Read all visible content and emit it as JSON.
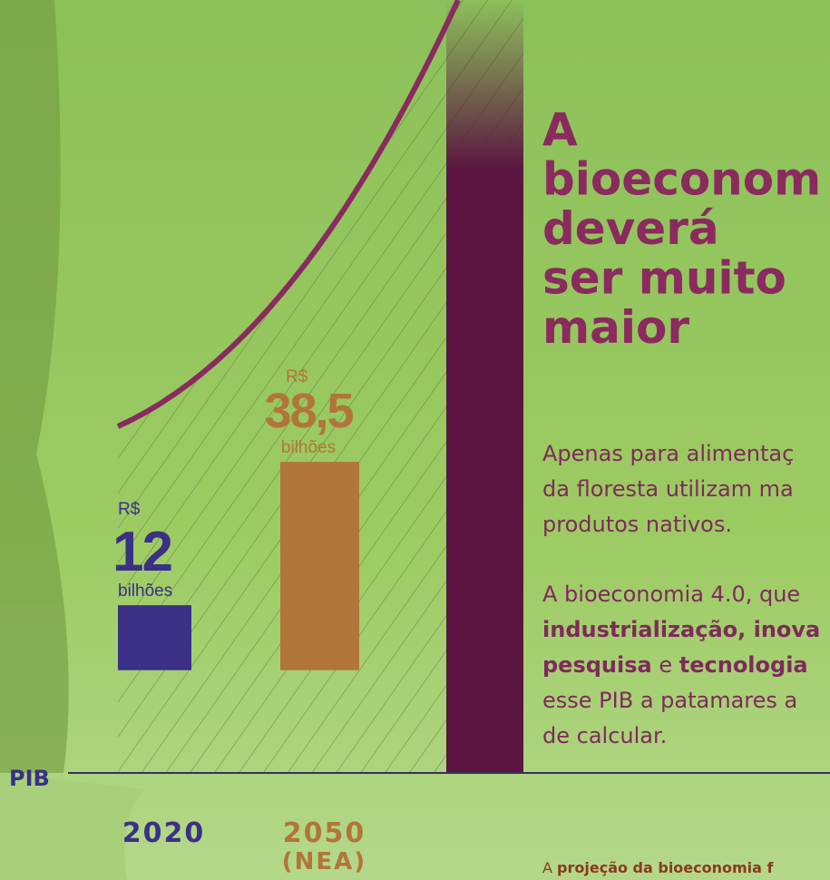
{
  "chart_data": {
    "type": "bar",
    "categories": [
      "2020",
      "2050"
    ],
    "category_sublabels": [
      null,
      "(NEA)"
    ],
    "values": [
      12,
      38.5
    ],
    "value_labels": [
      "12",
      "38,5"
    ],
    "colors": [
      "#3b2f86",
      "#b27539"
    ],
    "currency": "R$",
    "unit": "bilhões",
    "axis_label": "PIB",
    "ylim": [
      -19,
      62
    ]
  },
  "article": {
    "heading": [
      "A",
      "bioeconom",
      "deverá",
      "ser muito",
      "maior"
    ],
    "paragraphs": [
      [
        [
          {
            "text": "Apenas para alimentaç",
            "bold": false
          }
        ],
        [
          {
            "text": "da floresta utilizam ma",
            "bold": false
          }
        ],
        [
          {
            "text": "produtos nativos.",
            "bold": false
          }
        ]
      ],
      [
        [
          {
            "text": "A bioeconomia 4.0, que",
            "bold": false
          }
        ],
        [
          {
            "text": "industrialização, inova",
            "bold": true
          }
        ],
        [
          {
            "text": "pesquisa",
            "bold": true
          },
          {
            "text": " e ",
            "bold": false
          },
          {
            "text": "tecnologia",
            "bold": true
          }
        ],
        [
          {
            "text": "esse PIB a patamares a",
            "bold": false
          }
        ],
        [
          {
            "text": "de calcular.",
            "bold": false
          }
        ]
      ]
    ],
    "footnote": [
      {
        "text": "A ",
        "bold": false
      },
      {
        "text": "projeção da bioeconomia f",
        "bold": true
      }
    ]
  }
}
